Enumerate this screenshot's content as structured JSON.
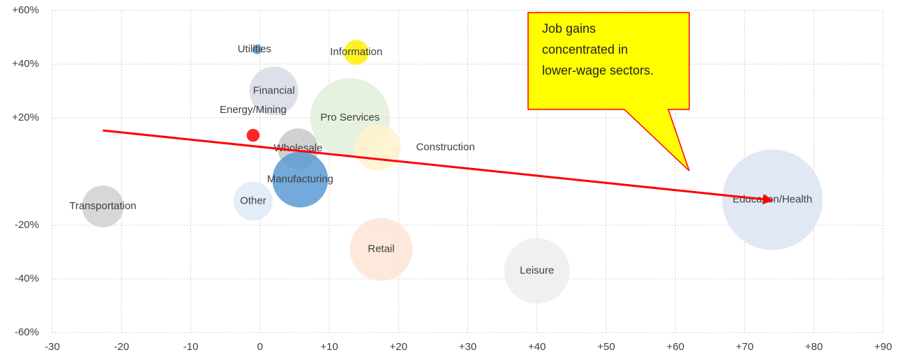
{
  "chart_data": {
    "type": "scatter",
    "xlim": [
      -30,
      90
    ],
    "xticks": [
      -30,
      -20,
      -10,
      0,
      {
        "value": 10,
        "label": "+10"
      },
      {
        "value": 20,
        "label": "+20"
      },
      {
        "value": 30,
        "label": "+30"
      },
      {
        "value": 40,
        "label": "+40"
      },
      {
        "value": 50,
        "label": "+50"
      },
      {
        "value": 60,
        "label": "+60"
      },
      {
        "value": 70,
        "label": "+70"
      },
      {
        "value": 80,
        "label": "+80"
      },
      {
        "value": 90,
        "label": "+90"
      }
    ],
    "ylim": [
      -60,
      60
    ],
    "yticks": [
      {
        "value": -60,
        "label": "-60%"
      },
      {
        "value": -40,
        "label": "-40%"
      },
      {
        "value": -20,
        "label": "-20%"
      },
      {
        "value": 20,
        "label": "+20%"
      },
      {
        "value": 40,
        "label": "+40%"
      },
      {
        "value": 60,
        "label": "+60%"
      }
    ],
    "grid": true,
    "series": [
      {
        "name": "Utilities",
        "color": "#5b9bd5",
        "x": [
          -0.4
        ],
        "values": [
          45.5
        ],
        "sizes": [
          4
        ]
      },
      {
        "name": "Information",
        "color": "#ffee00",
        "x": [
          13.9
        ],
        "values": [
          44.4
        ],
        "sizes": [
          26
        ]
      },
      {
        "name": "Financial",
        "color": "#d6dce5",
        "x": [
          2
        ],
        "values": [
          30
        ],
        "sizes": [
          100
        ]
      },
      {
        "name": "Energy/Mining",
        "color": "#ff0000",
        "x": [
          -1
        ],
        "values": [
          13.5
        ],
        "sizes": [
          7
        ]
      },
      {
        "name": "Pro Services",
        "color": "#e2efda",
        "x": [
          13
        ],
        "values": [
          20
        ],
        "sizes": [
          265
        ]
      },
      {
        "name": "Construction",
        "color": "#fff2cc",
        "x": [
          17
        ],
        "values": [
          9
        ],
        "sizes": [
          89
        ]
      },
      {
        "name": "Wholesale",
        "color": "#c9c9c9",
        "x": [
          5.5
        ],
        "values": [
          8.5
        ],
        "sizes": [
          69
        ]
      },
      {
        "name": "Manufacturing",
        "color": "#5b9bd5",
        "x": [
          5.8
        ],
        "values": [
          -3
        ],
        "sizes": [
          130
        ]
      },
      {
        "name": "Other",
        "color": "#deebf7",
        "x": [
          -1
        ],
        "values": [
          -11
        ],
        "sizes": [
          64
        ]
      },
      {
        "name": "Transportation",
        "color": "#d0d0d0",
        "x": [
          -22.7
        ],
        "values": [
          -13
        ],
        "sizes": [
          73
        ]
      },
      {
        "name": "Retail",
        "color": "#fbe5d6",
        "x": [
          17.5
        ],
        "values": [
          -29
        ],
        "sizes": [
          165
        ]
      },
      {
        "name": "Leisure",
        "color": "#ededed",
        "x": [
          40
        ],
        "values": [
          -37
        ],
        "sizes": [
          180
        ]
      },
      {
        "name": "Education/Health",
        "color": "#dae3f3",
        "x": [
          74
        ],
        "values": [
          -10.5
        ],
        "sizes": [
          423
        ]
      }
    ],
    "trend": {
      "color": "#ff0000",
      "x": [
        -22.7,
        74
      ],
      "values": [
        15.3,
        -10.7
      ]
    },
    "annotation": [
      "Job gains",
      "concentrated in",
      "lower-wage sectors."
    ]
  }
}
